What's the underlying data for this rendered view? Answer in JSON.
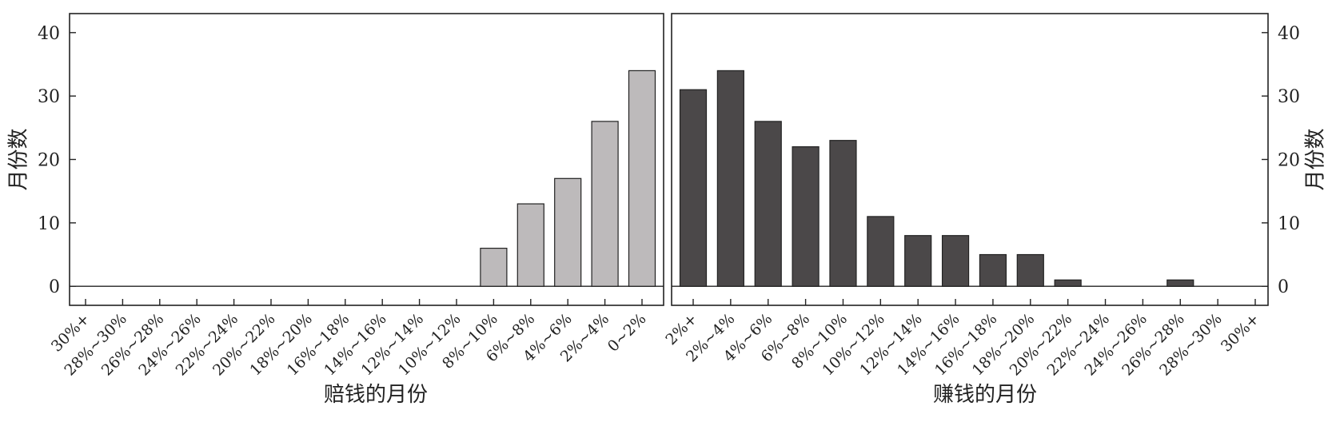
{
  "chart_data": [
    {
      "type": "bar",
      "xlabel": "赔钱的月份",
      "ylabel": "月份数",
      "ylim": [
        -3,
        43
      ],
      "yticks": [
        0,
        10,
        20,
        30,
        40
      ],
      "grid": false,
      "categories": [
        "30%+",
        "28%~30%",
        "26%~28%",
        "24%~26%",
        "22%~24%",
        "20%~22%",
        "18%~20%",
        "16%~18%",
        "14%~16%",
        "12%~14%",
        "10%~12%",
        "8%~10%",
        "6%~8%",
        "4%~6%",
        "2%~4%",
        "0~2%"
      ],
      "series": [
        {
          "values": [
            0,
            0,
            0,
            0,
            0,
            0,
            0,
            0,
            0,
            0,
            0,
            6,
            13,
            17,
            26,
            34
          ],
          "color": "#bdbabb"
        }
      ]
    },
    {
      "type": "bar",
      "xlabel": "赚钱的月份",
      "ylabel": "月份数",
      "ylim": [
        -3,
        43
      ],
      "yticks": [
        0,
        10,
        20,
        30,
        40
      ],
      "grid": false,
      "categories": [
        "2%+",
        "2%~4%",
        "4%~6%",
        "6%~8%",
        "8%~10%",
        "10%~12%",
        "12%~14%",
        "14%~16%",
        "16%~18%",
        "18%~20%",
        "20%~22%",
        "22%~24%",
        "24%~26%",
        "26%~28%",
        "28%~30%",
        "30%+"
      ],
      "series": [
        {
          "values": [
            31,
            34,
            26,
            22,
            23,
            11,
            8,
            8,
            5,
            5,
            1,
            0,
            0,
            1,
            0,
            0
          ],
          "color": "#4b4849"
        }
      ]
    }
  ]
}
